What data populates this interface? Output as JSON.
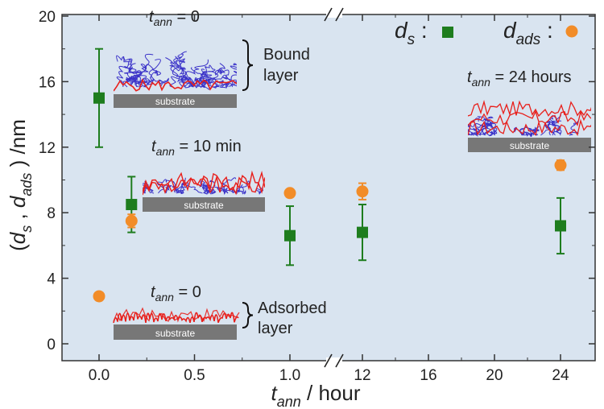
{
  "chart_data": {
    "type": "scatter",
    "xlabel_main": "t",
    "xlabel_sub": "ann",
    "xlabel_unit": " / hour",
    "ylabel_parts": [
      "(d",
      "s",
      " , d",
      "ads",
      " ) /nm"
    ],
    "ylim": [
      0,
      20
    ],
    "y_ticks": [
      "0",
      "4",
      "8",
      "12",
      "16",
      "20"
    ],
    "x_break": true,
    "x_ticks_left": [
      "0.0",
      "0.5",
      "1.0"
    ],
    "x_ticks_right": [
      "12",
      "16",
      "20",
      "24"
    ],
    "legend_placement": "top-right",
    "series": [
      {
        "name": "d_s",
        "legend_main": "d",
        "legend_sub": "s",
        "legend_suffix": " :",
        "marker": "square",
        "color": "#1e7d1e",
        "points": [
          {
            "x": 0.0,
            "y": 15.0,
            "err": 3.0
          },
          {
            "x": 0.17,
            "y": 8.5,
            "err": 1.7
          },
          {
            "x": 1.0,
            "y": 6.6,
            "err": 1.8
          },
          {
            "x": 12,
            "y": 6.8,
            "err": 1.7
          },
          {
            "x": 24,
            "y": 7.2,
            "err": 1.7
          }
        ]
      },
      {
        "name": "d_ads",
        "legend_main": "d",
        "legend_sub": "ads",
        "legend_suffix": " :",
        "marker": "circle",
        "color": "#f28c28",
        "points": [
          {
            "x": 0.0,
            "y": 2.9,
            "err": 0.2
          },
          {
            "x": 0.17,
            "y": 7.5,
            "err": 0.4
          },
          {
            "x": 1.0,
            "y": 9.2,
            "err": 0.2
          },
          {
            "x": 12,
            "y": 9.3,
            "err": 0.5
          },
          {
            "x": 24,
            "y": 10.9,
            "err": 0.3
          }
        ]
      }
    ],
    "annotations": {
      "tann_prefix": "t",
      "tann_sub": "ann",
      "tann_0_bound": " = 0",
      "tann_10": " = 10 min",
      "tann_24": " = 24 hours",
      "tann_0_ads": " = 0",
      "bound_layer_line1": "Bound",
      "bound_layer_line2": "layer",
      "adsorbed_layer_line1": "Adsorbed",
      "adsorbed_layer_line2": "layer",
      "substrate": "substrate"
    },
    "colors": {
      "plot_bg": "#d9e4f0",
      "bound_chain": "#3a32c8",
      "adsorbed_chain": "#e8201c",
      "substrate": "#777777"
    }
  }
}
